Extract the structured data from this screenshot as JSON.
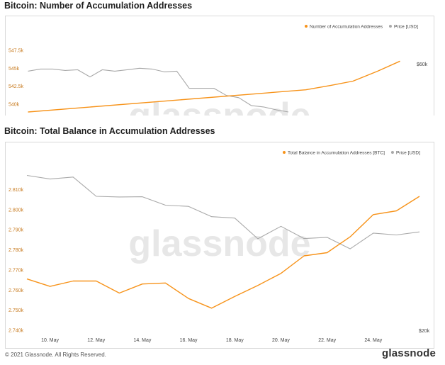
{
  "charts": [
    {
      "title": "Bitcoin: Number of Accumulation Addresses",
      "legend": [
        "Number of Accumulation Addresses",
        "Price [USD]"
      ],
      "watermark": "glassnode",
      "right_label": "$60k"
    },
    {
      "title": "Bitcoin: Total Balance in Accumulation Addresses",
      "legend": [
        "Total Balance in Accumulation Addresses [BTC]",
        "Price [USD]"
      ],
      "watermark": "glassnode",
      "right_label": "$20k"
    }
  ],
  "footer": {
    "copyright": "© 2021 Glassnode. All Rights Reserved.",
    "logo": "glassnode"
  },
  "colors": {
    "primary": "#f7931a",
    "price": "#a9a9a9"
  },
  "chart_data": [
    {
      "type": "line",
      "title": "Bitcoin: Number of Accumulation Addresses",
      "ylim": [
        538500,
        548500
      ],
      "y_ticks": [
        540000,
        542500,
        545000,
        547500
      ],
      "y_tick_labels": [
        "540k",
        "542.5k",
        "545k",
        "547.5k"
      ],
      "right_tick_label": "$60k",
      "grid": false,
      "legend_position": "top-right",
      "series": [
        {
          "name": "Number of Accumulation Addresses",
          "color": "#f7931a",
          "x": [
            0,
            11.2,
            12.2,
            13.1,
            14.1,
            15.0
          ],
          "y": [
            538900,
            542000,
            542600,
            543200,
            544600,
            546000
          ]
        },
        {
          "name": "Price [USD]",
          "color": "#a9a9a9",
          "x": [
            0,
            0.5,
            1,
            1.5,
            2,
            2.5,
            3,
            3.5,
            4,
            4.5,
            5,
            5.5,
            6,
            6.5,
            7,
            7.5,
            8,
            8.5,
            9,
            9.5,
            10,
            10.5
          ],
          "y": [
            544600,
            544900,
            544900,
            544700,
            544800,
            543800,
            544800,
            544600,
            544800,
            545000,
            544900,
            544500,
            544600,
            542200,
            542200,
            542200,
            541200,
            540900,
            539800,
            539600,
            539200,
            538900
          ]
        }
      ]
    },
    {
      "type": "line",
      "title": "Bitcoin: Total Balance in Accumulation Addresses",
      "categories": [
        "10. May",
        "12. May",
        "14. May",
        "16. May",
        "18. May",
        "20. May",
        "22. May",
        "24. May"
      ],
      "ylim": [
        2740000,
        2820000
      ],
      "y_ticks": [
        2740000,
        2750000,
        2760000,
        2770000,
        2780000,
        2790000,
        2800000,
        2810000
      ],
      "y_tick_labels": [
        "2.740k",
        "2.750k",
        "2.760k",
        "2.770k",
        "2.780k",
        "2.790k",
        "2.800k",
        "2.810k"
      ],
      "right_tick_label": "$20k",
      "grid": false,
      "legend_position": "top-right",
      "series": [
        {
          "name": "Total Balance in Accumulation Addresses [BTC]",
          "color": "#f7931a",
          "x": [
            9,
            10,
            11,
            12,
            13,
            14,
            15,
            16,
            17,
            18,
            19,
            20,
            21,
            22,
            23,
            24,
            25,
            26
          ],
          "y": [
            2765500,
            2761800,
            2764500,
            2764500,
            2758500,
            2763000,
            2763500,
            2755800,
            2751000,
            2756800,
            2762300,
            2768300,
            2777000,
            2778600,
            2786500,
            2797500,
            2799400,
            2806600
          ]
        },
        {
          "name": "Price [USD]",
          "color": "#a9a9a9",
          "x": [
            9,
            10,
            11,
            12,
            13,
            14,
            15,
            16,
            17,
            18,
            19,
            20,
            21,
            22,
            23,
            24,
            25,
            26
          ],
          "y": [
            2817000,
            2815200,
            2816200,
            2806600,
            2806300,
            2806400,
            2802200,
            2801600,
            2796500,
            2795800,
            2785500,
            2791700,
            2785600,
            2786200,
            2780500,
            2788300,
            2787400,
            2788900
          ]
        }
      ]
    }
  ]
}
